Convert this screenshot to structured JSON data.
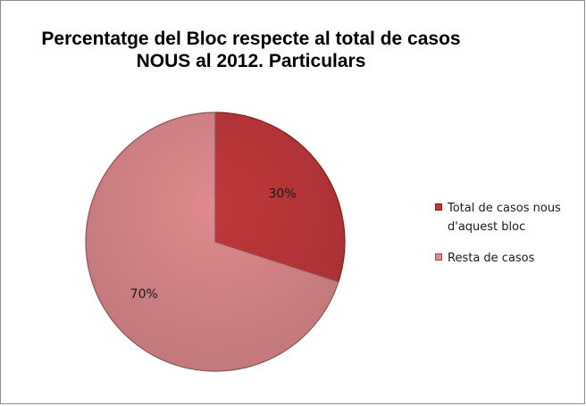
{
  "chart_data": {
    "type": "pie",
    "title": [
      "Percentatge del Bloc respecte al total de casos",
      "NOUS al 2012. Particulars"
    ],
    "slices": [
      {
        "label": "Total de casos nous d'aquest bloc",
        "label_lines": [
          "Total de casos nous",
          "d'aquest bloc"
        ],
        "value": 30,
        "display": "30%",
        "color": "#c0383a"
      },
      {
        "label": "Resta de casos",
        "label_lines": [
          "Resta de casos"
        ],
        "value": 70,
        "display": "70%",
        "color": "#df8a8e"
      }
    ],
    "legend_position": "right"
  }
}
